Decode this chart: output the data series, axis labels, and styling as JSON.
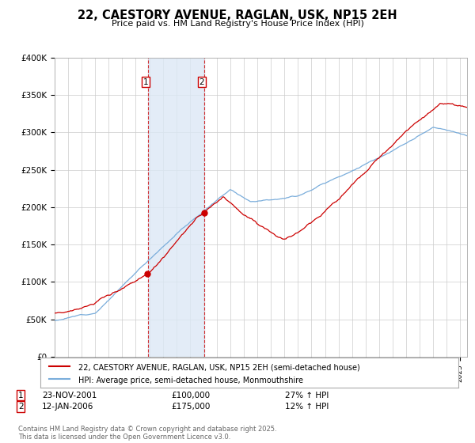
{
  "title": "22, CAESTORY AVENUE, RAGLAN, USK, NP15 2EH",
  "subtitle": "Price paid vs. HM Land Registry's House Price Index (HPI)",
  "ylabel_ticks": [
    "£0",
    "£50K",
    "£100K",
    "£150K",
    "£200K",
    "£250K",
    "£300K",
    "£350K",
    "£400K"
  ],
  "ylim": [
    0,
    400000
  ],
  "xlim_start": 1995.0,
  "xlim_end": 2025.5,
  "legend_line1": "22, CAESTORY AVENUE, RAGLAN, USK, NP15 2EH (semi-detached house)",
  "legend_line2": "HPI: Average price, semi-detached house, Monmouthshire",
  "transaction1_date": "23-NOV-2001",
  "transaction1_price": "£100,000",
  "transaction1_hpi": "27% ↑ HPI",
  "transaction1_x": 2001.9,
  "transaction1_y": 100000,
  "transaction2_date": "12-JAN-2006",
  "transaction2_price": "£175,000",
  "transaction2_hpi": "12% ↑ HPI",
  "transaction2_x": 2006.04,
  "transaction2_y": 175000,
  "red_color": "#cc0000",
  "blue_color": "#7aaddb",
  "shade_color": "#dce8f5",
  "grid_color": "#cccccc",
  "background_color": "#ffffff",
  "footer": "Contains HM Land Registry data © Crown copyright and database right 2025.\nThis data is licensed under the Open Government Licence v3.0."
}
